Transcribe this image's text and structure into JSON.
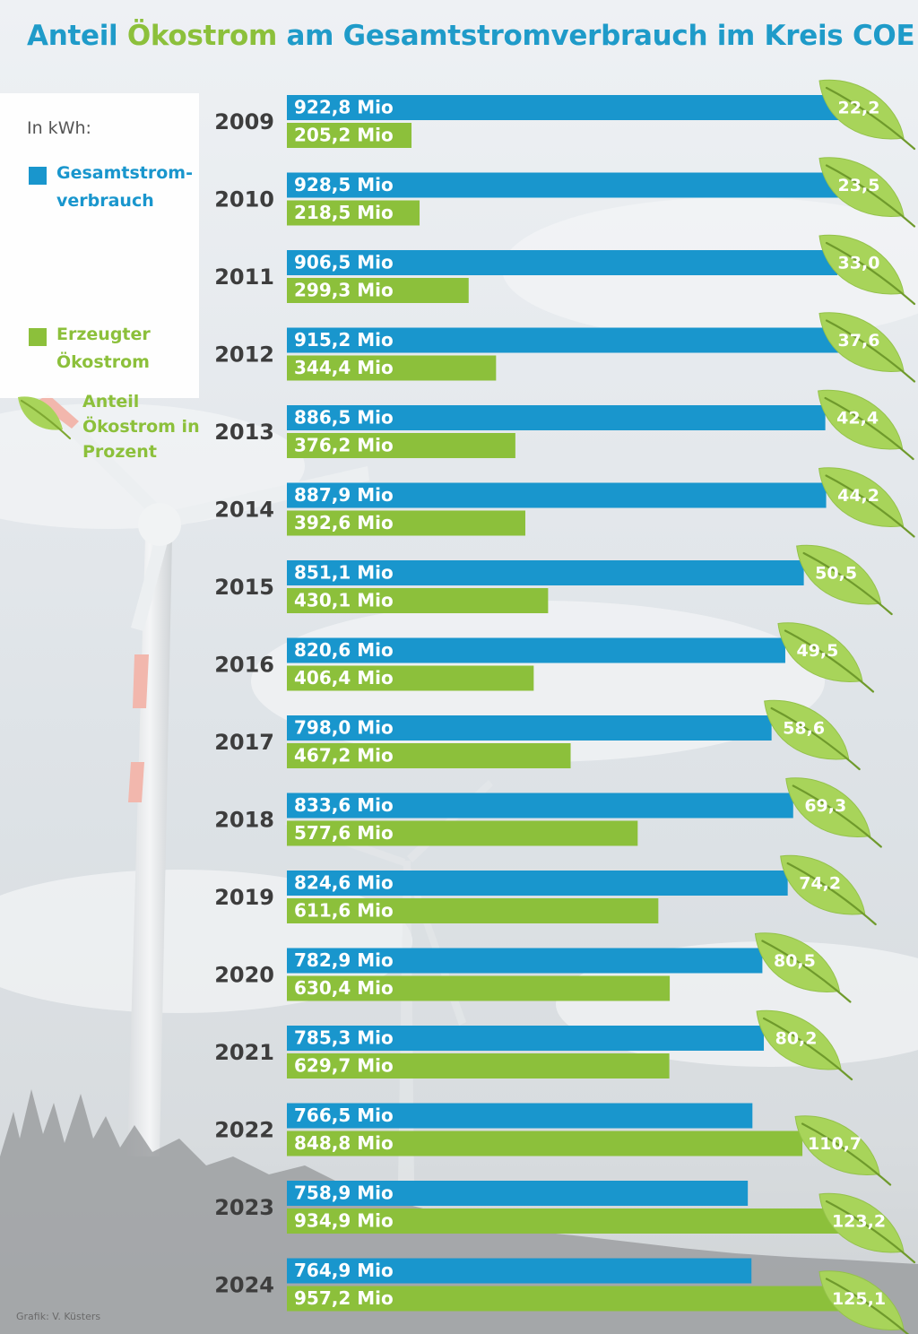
{
  "title": {
    "part1": "Anteil ",
    "part2": "Ökostrom",
    "part3": " am Gesamtstromverbrauch im Kreis COE"
  },
  "legend": {
    "unit": "In kWh:",
    "total": "Gesamtstrom-verbrauch",
    "green": "Erzeugter Ökostrom",
    "share": "Anteil Ökostrom in Prozent"
  },
  "colors": {
    "blue": "#1996cd",
    "green": "#8cc03b",
    "leaf": "#a8d45a",
    "title_blue": "#1f9bc9"
  },
  "credit": "Grafik: V. Küsters",
  "chart_data": {
    "type": "bar",
    "orientation": "horizontal",
    "title": "Anteil Ökostrom am Gesamtstromverbrauch im Kreis COE",
    "unit": "kWh",
    "value_suffix": " Mio",
    "categories": [
      "2009",
      "2010",
      "2011",
      "2012",
      "2013",
      "2014",
      "2015",
      "2016",
      "2017",
      "2018",
      "2019",
      "2020",
      "2021",
      "2022",
      "2023",
      "2024"
    ],
    "series": [
      {
        "name": "Gesamtstromverbrauch",
        "color": "#1996cd",
        "values": [
          922.8,
          928.5,
          906.5,
          915.2,
          886.5,
          887.9,
          851.1,
          820.6,
          798.0,
          833.6,
          824.6,
          782.9,
          785.3,
          766.5,
          758.9,
          764.9
        ],
        "labels": [
          "922,8",
          "928,5",
          "906,5",
          "915,2",
          "886,5",
          "887,9",
          "851,1",
          "820,6",
          "798,0",
          "833,6",
          "824,6",
          "782,9",
          "785,3",
          "766,5",
          "758,9",
          "764,9"
        ]
      },
      {
        "name": "Erzeugter Ökostrom",
        "color": "#8cc03b",
        "values": [
          205.2,
          218.5,
          299.3,
          344.4,
          376.2,
          392.6,
          430.1,
          406.4,
          467.2,
          577.6,
          611.6,
          630.4,
          629.7,
          848.8,
          934.9,
          957.2
        ],
        "labels": [
          "205,2",
          "218,5",
          "299,3",
          "344,4",
          "376,2",
          "392,6",
          "430,1",
          "406,4",
          "467,2",
          "577,6",
          "611,6",
          "630,4",
          "629,7",
          "848,8",
          "934,9",
          "957,2"
        ]
      }
    ],
    "share_percent": {
      "name": "Anteil Ökostrom in Prozent",
      "values": [
        22.2,
        23.5,
        33.0,
        37.6,
        42.4,
        44.2,
        50.5,
        49.5,
        58.6,
        69.3,
        74.2,
        80.5,
        80.2,
        110.7,
        123.2,
        125.1
      ],
      "labels": [
        "22,2",
        "23,5",
        "33,0",
        "37,6",
        "42,4",
        "44,2",
        "50,5",
        "49,5",
        "58,6",
        "69,3",
        "74,2",
        "80,5",
        "80,2",
        "110,7",
        "123,2",
        "125,1"
      ]
    }
  }
}
